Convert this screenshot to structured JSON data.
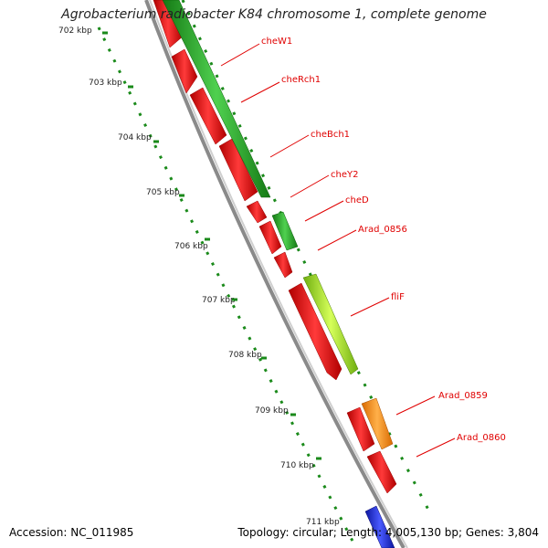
{
  "title": "Agrobacterium radiobacter K84 chromosome 1, complete genome",
  "footer": {
    "accession": "Accession: NC_011985",
    "summary": "Topology: circular; Length: 4,005,130 bp; Genes: 3,804"
  },
  "kbp_labels": [
    "702 kbp",
    "703 kbp",
    "704 kbp",
    "705 kbp",
    "706 kbp",
    "707 kbp",
    "708 kbp",
    "709 kbp",
    "710 kbp",
    "711 kbp"
  ],
  "gene_labels": [
    "cheW1",
    "cheRch1",
    "cheBch1",
    "cheY2",
    "cheD",
    "Arad_0856",
    "fliF",
    "Arad_0859",
    "Arad_0860"
  ],
  "colors": {
    "backbone": "#8a8a8a",
    "cds": "#ee1111",
    "green_track": "#2aaa2a",
    "lime_track": "#9adf1a",
    "orange": "#ff8800",
    "blue": "#1a2ae0",
    "tick": "#1a8a1a",
    "label": "#e00000"
  }
}
